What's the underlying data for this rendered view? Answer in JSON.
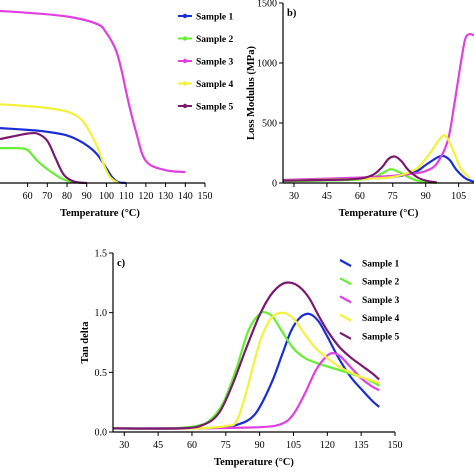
{
  "chart_data": [
    {
      "panel_label": "",
      "type": "line",
      "xlabel": "Temperature (°C)",
      "ylabel": "",
      "xlim": [
        46,
        150
      ],
      "ylim": [
        0,
        1
      ],
      "xticks": [
        60,
        70,
        80,
        90,
        100,
        110,
        120,
        130,
        140,
        150
      ],
      "yticks": [],
      "legend_position": "right",
      "series": [
        {
          "name": "Sample 1",
          "color": "#1a2ed6",
          "x": [
            46,
            60,
            70,
            80,
            88,
            95,
            100,
            103,
            106,
            110
          ],
          "y": [
            0.3,
            0.29,
            0.28,
            0.26,
            0.22,
            0.16,
            0.08,
            0.03,
            0.005,
            0
          ]
        },
        {
          "name": "Sample 2",
          "color": "#66ee33",
          "x": [
            46,
            55,
            60,
            65,
            72,
            78,
            82,
            86,
            90
          ],
          "y": [
            0.19,
            0.19,
            0.18,
            0.12,
            0.06,
            0.02,
            0.008,
            0.002,
            0
          ]
        },
        {
          "name": "Sample 3",
          "color": "#e040e0",
          "x": [
            46,
            60,
            80,
            95,
            100,
            105,
            108,
            111,
            115,
            120,
            130,
            140
          ],
          "y": [
            0.94,
            0.93,
            0.91,
            0.87,
            0.82,
            0.72,
            0.6,
            0.45,
            0.28,
            0.12,
            0.07,
            0.06
          ]
        },
        {
          "name": "Sample 4",
          "color": "#f2f23a",
          "x": [
            46,
            60,
            70,
            80,
            87,
            92,
            96,
            99,
            102,
            106
          ],
          "y": [
            0.43,
            0.42,
            0.41,
            0.39,
            0.35,
            0.27,
            0.18,
            0.09,
            0.03,
            0
          ]
        },
        {
          "name": "Sample 5",
          "color": "#7a1a6e",
          "x": [
            46,
            55,
            60,
            65,
            70,
            74,
            78,
            82,
            86,
            90
          ],
          "y": [
            0.24,
            0.26,
            0.27,
            0.27,
            0.23,
            0.14,
            0.05,
            0.015,
            0.003,
            0
          ]
        }
      ]
    },
    {
      "panel_label": "b)",
      "type": "line",
      "xlabel": "Temperature (°C)",
      "ylabel": "Loss Modulus (MPa)",
      "xlim": [
        25,
        112
      ],
      "ylim": [
        0,
        1500
      ],
      "xticks": [
        30,
        45,
        60,
        75,
        90,
        105
      ],
      "yticks": [
        0,
        500,
        1000,
        1500
      ],
      "series": [
        {
          "name": "Sample 1",
          "color": "#1a2ed6",
          "x": [
            25,
            60,
            75,
            85,
            90,
            95,
            98,
            101,
            104,
            108,
            112
          ],
          "y": [
            20,
            35,
            50,
            90,
            150,
            210,
            225,
            190,
            110,
            40,
            10
          ]
        },
        {
          "name": "Sample 2",
          "color": "#66ee33",
          "x": [
            25,
            55,
            65,
            70,
            74,
            78,
            82,
            86,
            90,
            95
          ],
          "y": [
            15,
            25,
            40,
            80,
            115,
            90,
            50,
            20,
            8,
            0
          ]
        },
        {
          "name": "Sample 3",
          "color": "#e040e0",
          "x": [
            25,
            60,
            75,
            85,
            90,
            95,
            100,
            103,
            106,
            108,
            110,
            112
          ],
          "y": [
            25,
            45,
            60,
            80,
            100,
            160,
            350,
            650,
            1000,
            1200,
            1240,
            1230
          ]
        },
        {
          "name": "Sample 4",
          "color": "#f2f23a",
          "x": [
            25,
            60,
            75,
            85,
            90,
            95,
            98,
            100,
            103,
            106,
            110
          ],
          "y": [
            20,
            35,
            50,
            110,
            200,
            330,
            395,
            370,
            250,
            120,
            40
          ]
        },
        {
          "name": "Sample 5",
          "color": "#7a1a6e",
          "x": [
            25,
            55,
            65,
            70,
            73,
            76,
            79,
            82,
            86,
            90,
            95
          ],
          "y": [
            20,
            30,
            60,
            130,
            200,
            220,
            180,
            110,
            50,
            20,
            5
          ]
        }
      ]
    },
    {
      "panel_label": "c)",
      "type": "line",
      "xlabel": "Temperature (°C)",
      "ylabel": "Tan delta",
      "xlim": [
        25,
        150
      ],
      "ylim": [
        0,
        1.5
      ],
      "xticks": [
        30,
        45,
        60,
        75,
        90,
        105,
        120,
        135,
        150
      ],
      "yticks": [
        0.0,
        0.5,
        1.0,
        1.5
      ],
      "series": [
        {
          "name": "Sample 1",
          "color": "#1a2ed6",
          "x": [
            25,
            50,
            70,
            80,
            88,
            95,
            100,
            104,
            108,
            112,
            116,
            120,
            125,
            130,
            135,
            140,
            143
          ],
          "y": [
            0.03,
            0.03,
            0.035,
            0.06,
            0.15,
            0.4,
            0.65,
            0.85,
            0.96,
            0.99,
            0.93,
            0.8,
            0.62,
            0.47,
            0.36,
            0.26,
            0.21
          ]
        },
        {
          "name": "Sample 2",
          "color": "#66ee33",
          "x": [
            25,
            50,
            62,
            68,
            74,
            80,
            85,
            90,
            93,
            96,
            100,
            105,
            110,
            115,
            120,
            125,
            130,
            135,
            140,
            143
          ],
          "y": [
            0.03,
            0.03,
            0.05,
            0.1,
            0.25,
            0.55,
            0.85,
            0.99,
            1.0,
            0.96,
            0.84,
            0.7,
            0.62,
            0.58,
            0.55,
            0.52,
            0.49,
            0.46,
            0.42,
            0.39
          ]
        },
        {
          "name": "Sample 3",
          "color": "#e040e0",
          "x": [
            25,
            60,
            90,
            100,
            105,
            110,
            115,
            120,
            123,
            126,
            130,
            135,
            140,
            143
          ],
          "y": [
            0.03,
            0.03,
            0.04,
            0.07,
            0.15,
            0.32,
            0.52,
            0.64,
            0.66,
            0.63,
            0.55,
            0.45,
            0.38,
            0.35
          ]
        },
        {
          "name": "Sample 4",
          "color": "#f2f23a",
          "x": [
            25,
            60,
            75,
            80,
            85,
            90,
            95,
            100,
            105,
            110,
            115,
            120,
            125,
            130,
            135,
            140,
            143
          ],
          "y": [
            0.03,
            0.03,
            0.05,
            0.1,
            0.4,
            0.75,
            0.95,
            1.0,
            0.95,
            0.82,
            0.7,
            0.62,
            0.55,
            0.5,
            0.46,
            0.43,
            0.41
          ]
        },
        {
          "name": "Sample 5",
          "color": "#7a1a6e",
          "x": [
            25,
            55,
            65,
            72,
            78,
            84,
            90,
            95,
            100,
            104,
            108,
            112,
            116,
            120,
            125,
            130,
            135,
            140,
            143
          ],
          "y": [
            0.03,
            0.03,
            0.06,
            0.16,
            0.4,
            0.7,
            0.98,
            1.15,
            1.24,
            1.25,
            1.21,
            1.12,
            0.98,
            0.85,
            0.72,
            0.63,
            0.56,
            0.49,
            0.44
          ]
        }
      ]
    }
  ]
}
